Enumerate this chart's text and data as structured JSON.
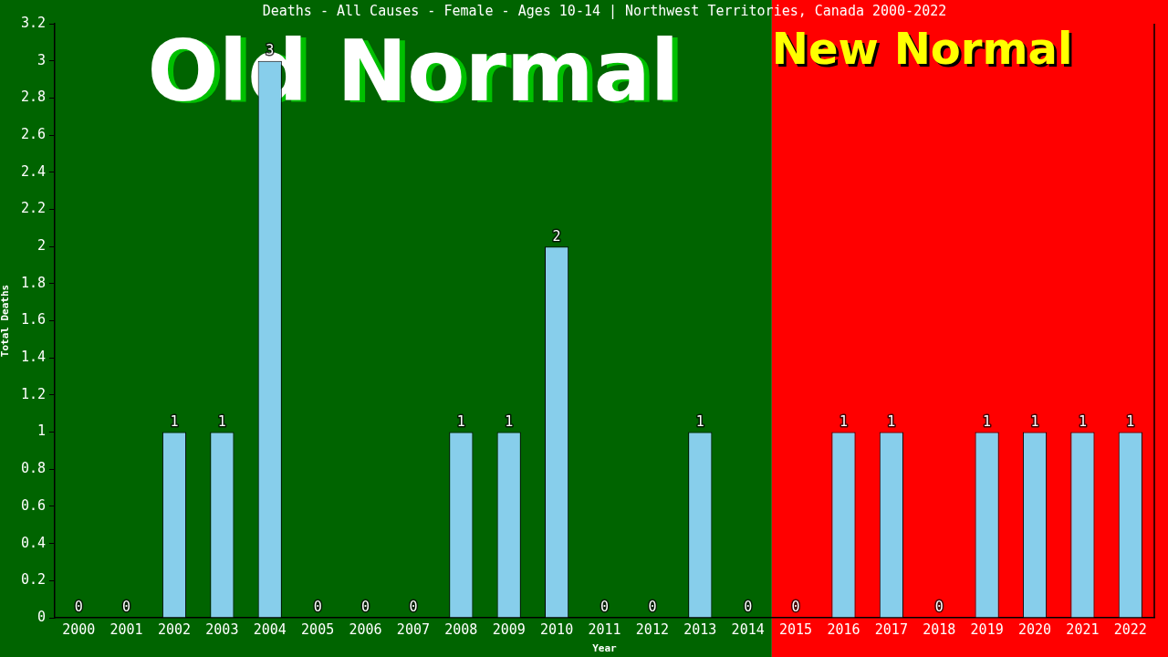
{
  "chart_data": {
    "type": "bar",
    "title": "Deaths - All Causes - Female - Ages 10-14 | Northwest Territories, Canada 2000-2022",
    "xlabel": "Year",
    "ylabel": "Total Deaths",
    "categories": [
      "2000",
      "2001",
      "2002",
      "2003",
      "2004",
      "2005",
      "2006",
      "2007",
      "2008",
      "2009",
      "2010",
      "2011",
      "2012",
      "2013",
      "2014",
      "2015",
      "2016",
      "2017",
      "2018",
      "2019",
      "2020",
      "2021",
      "2022"
    ],
    "values": [
      0,
      0,
      1,
      1,
      3,
      0,
      0,
      0,
      1,
      1,
      2,
      0,
      0,
      1,
      0,
      0,
      1,
      1,
      0,
      1,
      1,
      1,
      1
    ],
    "color": "#87ceeb",
    "ylim": [
      0,
      3.2
    ],
    "yticks": [
      0,
      0.2,
      0.4,
      0.6,
      0.8,
      1,
      1.2,
      1.4,
      1.6,
      1.8,
      2,
      2.2,
      2.4,
      2.6,
      2.8,
      3,
      3.2
    ],
    "grid": false,
    "data_labels": true,
    "bands": [
      {
        "axis": "x",
        "from": "2000",
        "to": "2014",
        "label": "Old Normal",
        "color": "#006400"
      },
      {
        "axis": "x",
        "from": "2015",
        "to": "2022",
        "label": "New Normal",
        "color": "#ff0000"
      }
    ]
  }
}
